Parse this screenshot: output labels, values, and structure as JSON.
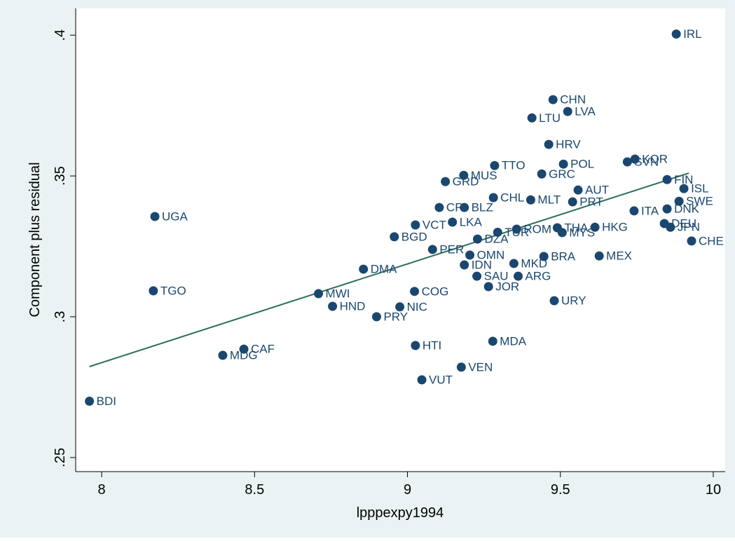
{
  "chart_data": {
    "type": "scatter",
    "x_label": "lpppexpy1994",
    "y_label": "Component plus residual",
    "xlim": [
      7.915,
      10.039
    ],
    "ylim": [
      0.245,
      0.4095
    ],
    "xticks": [
      8,
      8.5,
      9,
      9.5,
      10
    ],
    "yticks": [
      {
        "value": 0.25,
        "label": ".25"
      },
      {
        "value": 0.3,
        "label": ".3"
      },
      {
        "value": 0.35,
        "label": ".35"
      },
      {
        "value": 0.4,
        "label": ".4"
      }
    ],
    "color": "#1a476f",
    "line_color": "#2e6e5a",
    "labels": [
      "BDI",
      "UGA",
      "TGO",
      "CAF",
      "MDG",
      "MWI",
      "HND",
      "PRY",
      "NIC",
      "DMA",
      "BGD",
      "VCT",
      "CRI",
      "GRD",
      "MUS",
      "TTO",
      "BLZ",
      "LKA",
      "PER",
      "DZA",
      "TUR",
      "ROM",
      "THA",
      "OMN",
      "IDN",
      "MKD",
      "BRA",
      "MEX",
      "COG",
      "SAU",
      "ARG",
      "JOR",
      "URY",
      "HTI",
      "MDA",
      "VEN",
      "VUT",
      "CHN",
      "LVA",
      "LTU",
      "IRL",
      "HRV",
      "POL",
      "GRC",
      "KOR",
      "SVN",
      "MLT",
      "PRT",
      "MYS",
      "HKG",
      "ITA",
      "CHL",
      "FIN",
      "ISL",
      "DNK",
      "DEU",
      "JPN",
      "CHE",
      "SWE",
      "AUT"
    ],
    "x": [
      7.96,
      8.174,
      8.169,
      8.465,
      8.396,
      8.709,
      8.755,
      8.899,
      8.975,
      8.856,
      8.957,
      9.026,
      9.104,
      9.124,
      9.184,
      9.285,
      9.186,
      9.147,
      9.082,
      9.229,
      9.295,
      9.357,
      9.49,
      9.204,
      9.186,
      9.348,
      9.446,
      9.627,
      9.023,
      9.227,
      9.362,
      9.265,
      9.48,
      9.026,
      9.279,
      9.176,
      9.047,
      9.476,
      9.524,
      9.407,
      9.879,
      9.462,
      9.51,
      9.439,
      9.744,
      9.719,
      9.403,
      9.54,
      9.506,
      9.613,
      9.741,
      9.281,
      9.849,
      9.904,
      9.849,
      9.84,
      9.86,
      9.929,
      9.888,
      9.558
    ],
    "y": [
      0.27,
      0.3356,
      0.3092,
      0.2885,
      0.2863,
      0.3082,
      0.3037,
      0.3,
      0.3035,
      0.3169,
      0.3284,
      0.3326,
      0.3388,
      0.348,
      0.3502,
      0.3537,
      0.3388,
      0.3336,
      0.3239,
      0.3276,
      0.33,
      0.3311,
      0.3316,
      0.3219,
      0.3184,
      0.3189,
      0.3214,
      0.3216,
      0.309,
      0.3144,
      0.3144,
      0.3107,
      0.3057,
      0.2898,
      0.2913,
      0.2821,
      0.2776,
      0.3771,
      0.3729,
      0.3706,
      0.4004,
      0.3612,
      0.3542,
      0.3507,
      0.356,
      0.355,
      0.3415,
      0.3408,
      0.3299,
      0.3318,
      0.3376,
      0.3423,
      0.3487,
      0.3455,
      0.3383,
      0.3331,
      0.3318,
      0.3269,
      0.341,
      0.345
    ],
    "fit_line": {
      "x": [
        7.96,
        9.92
      ],
      "y": [
        0.2823,
        0.351
      ]
    }
  }
}
